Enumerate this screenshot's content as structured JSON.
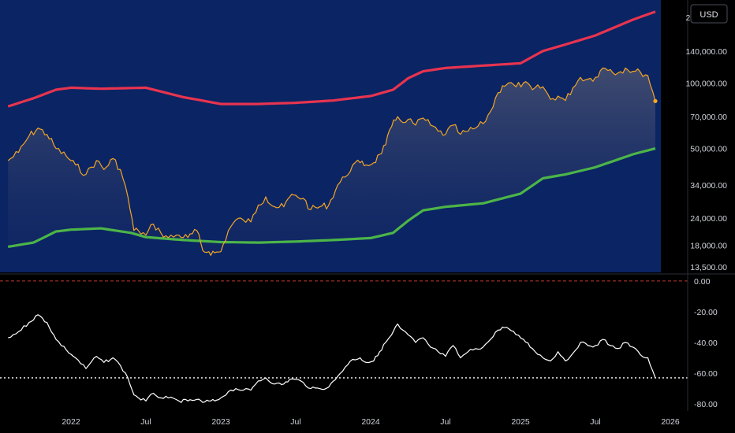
{
  "currency_label": "USD",
  "colors": {
    "panel_bg": "#0b2464",
    "price": "#f5a623",
    "upper_band": "#e8344f",
    "lower_band": "#4cb548",
    "oscillator": "#ffffff",
    "zero_line": "#c0392b"
  },
  "chart_data": [
    {
      "type": "line",
      "scale": "log",
      "ylim": [
        13500,
        240000
      ],
      "y_ticks": [
        "200,000.00",
        "140,000.00",
        "100,000.00",
        "70,000.00",
        "50,000.00",
        "34,000.00",
        "24,000.00",
        "18,000.00",
        "13,500.00"
      ],
      "y_tick_values": [
        200000,
        140000,
        100000,
        70000,
        50000,
        34000,
        24000,
        18000,
        13500
      ],
      "x_ticks": [
        "2022",
        "Jul",
        "2023",
        "Jul",
        "2024",
        "Jul",
        "2025",
        "Jul",
        "2026"
      ],
      "x_tick_values": [
        2022.0,
        2022.5,
        2023.0,
        2023.5,
        2024.0,
        2024.5,
        2025.0,
        2025.5,
        2026.0
      ],
      "series": [
        {
          "key": "upper",
          "x": [
            2021.58,
            2021.75,
            2021.9,
            2022.0,
            2022.2,
            2022.5,
            2022.75,
            2023.0,
            2023.25,
            2023.5,
            2023.75,
            2024.0,
            2024.15,
            2024.25,
            2024.35,
            2024.5,
            2024.75,
            2025.0,
            2025.15,
            2025.3,
            2025.5,
            2025.75,
            2025.9
          ],
          "y": [
            78000,
            85000,
            93000,
            95000,
            94000,
            95000,
            86000,
            80000,
            80000,
            81000,
            83000,
            87000,
            93000,
            105000,
            113000,
            117000,
            120000,
            123000,
            140000,
            150000,
            165000,
            195000,
            212000
          ]
        },
        {
          "key": "lower",
          "x": [
            2021.58,
            2021.75,
            2021.9,
            2022.0,
            2022.2,
            2022.4,
            2022.5,
            2022.75,
            2023.0,
            2023.25,
            2023.5,
            2023.75,
            2024.0,
            2024.15,
            2024.25,
            2024.35,
            2024.5,
            2024.75,
            2025.0,
            2025.15,
            2025.3,
            2025.5,
            2025.75,
            2025.9
          ],
          "y": [
            17700,
            18500,
            20800,
            21200,
            21500,
            20500,
            19600,
            19000,
            18600,
            18500,
            18700,
            19000,
            19400,
            20500,
            23300,
            26000,
            27000,
            28000,
            31000,
            36500,
            38000,
            41000,
            47000,
            50000
          ]
        },
        {
          "key": "price",
          "x": [
            2021.58,
            2021.65,
            2021.72,
            2021.78,
            2021.84,
            2021.9,
            2021.97,
            2022.03,
            2022.1,
            2022.17,
            2022.22,
            2022.28,
            2022.33,
            2022.38,
            2022.42,
            2022.45,
            2022.5,
            2022.55,
            2022.6,
            2022.65,
            2022.72,
            2022.78,
            2022.84,
            2022.88,
            2022.92,
            2022.96,
            2023.0,
            2023.05,
            2023.1,
            2023.15,
            2023.2,
            2023.25,
            2023.3,
            2023.36,
            2023.42,
            2023.46,
            2023.5,
            2023.55,
            2023.6,
            2023.66,
            2023.72,
            2023.78,
            2023.83,
            2023.88,
            2023.93,
            2023.97,
            2024.02,
            2024.06,
            2024.1,
            2024.14,
            2024.18,
            2024.2,
            2024.25,
            2024.3,
            2024.35,
            2024.4,
            2024.45,
            2024.5,
            2024.55,
            2024.6,
            2024.65,
            2024.7,
            2024.75,
            2024.8,
            2024.85,
            2024.88,
            2024.92,
            2024.97,
            2025.02,
            2025.08,
            2025.15,
            2025.2,
            2025.25,
            2025.3,
            2025.35,
            2025.4,
            2025.45,
            2025.5,
            2025.55,
            2025.6,
            2025.65,
            2025.7,
            2025.75,
            2025.8,
            2025.85,
            2025.9
          ],
          "y": [
            44000,
            48000,
            57000,
            62000,
            58000,
            50000,
            46000,
            42000,
            38000,
            44000,
            40000,
            45000,
            40000,
            30000,
            21000,
            21000,
            20000,
            22500,
            20500,
            19500,
            20000,
            19500,
            21000,
            17000,
            16800,
            16600,
            16800,
            21000,
            23500,
            23500,
            23000,
            27500,
            30000,
            27000,
            27000,
            30000,
            30500,
            29500,
            26200,
            27000,
            27500,
            34000,
            37000,
            42000,
            43000,
            42000,
            43000,
            47000,
            52000,
            63000,
            70000,
            67000,
            68000,
            64000,
            69000,
            64000,
            60000,
            58000,
            64000,
            58000,
            60000,
            62000,
            65000,
            74000,
            90000,
            97000,
            100000,
            96000,
            100000,
            93000,
            96000,
            84000,
            87000,
            83000,
            95000,
            106000,
            104000,
            106000,
            117000,
            115000,
            111000,
            117000,
            113000,
            112000,
            108000,
            82500
          ]
        }
      ]
    },
    {
      "type": "line",
      "ylim": [
        -84,
        4
      ],
      "y_ticks": [
        "0.00",
        "-20.00",
        "-40.00",
        "-60.00",
        "-80.00"
      ],
      "y_tick_values": [
        0,
        -20,
        -40,
        -60,
        -80
      ],
      "dashed_level": 0,
      "dotted_level": -63,
      "series": [
        {
          "key": "oscillator",
          "x": [
            2021.58,
            2021.65,
            2021.72,
            2021.78,
            2021.84,
            2021.9,
            2021.97,
            2022.03,
            2022.1,
            2022.17,
            2022.22,
            2022.28,
            2022.33,
            2022.38,
            2022.42,
            2022.45,
            2022.5,
            2022.55,
            2022.6,
            2022.65,
            2022.72,
            2022.78,
            2022.84,
            2022.88,
            2022.92,
            2022.96,
            2023.0,
            2023.05,
            2023.1,
            2023.15,
            2023.2,
            2023.25,
            2023.3,
            2023.36,
            2023.42,
            2023.46,
            2023.5,
            2023.55,
            2023.6,
            2023.66,
            2023.72,
            2023.78,
            2023.83,
            2023.88,
            2023.93,
            2023.97,
            2024.02,
            2024.06,
            2024.1,
            2024.14,
            2024.18,
            2024.2,
            2024.25,
            2024.3,
            2024.35,
            2024.4,
            2024.45,
            2024.5,
            2024.55,
            2024.6,
            2024.65,
            2024.7,
            2024.75,
            2024.8,
            2024.85,
            2024.88,
            2024.92,
            2024.97,
            2025.02,
            2025.08,
            2025.15,
            2025.2,
            2025.25,
            2025.3,
            2025.35,
            2025.4,
            2025.45,
            2025.5,
            2025.55,
            2025.6,
            2025.65,
            2025.7,
            2025.75,
            2025.8,
            2025.85,
            2025.9
          ],
          "y": [
            -37,
            -33,
            -27,
            -22,
            -27,
            -38,
            -45,
            -50,
            -57,
            -49,
            -53,
            -50,
            -55,
            -63,
            -74,
            -76,
            -78,
            -73,
            -76,
            -76,
            -78,
            -78,
            -77,
            -79,
            -78,
            -78,
            -76,
            -72,
            -70,
            -71,
            -71,
            -65,
            -63,
            -67,
            -67,
            -64,
            -64,
            -66,
            -70,
            -70,
            -69,
            -62,
            -56,
            -51,
            -50,
            -53,
            -52,
            -46,
            -40,
            -35,
            -28,
            -31,
            -35,
            -40,
            -37,
            -43,
            -46,
            -49,
            -42,
            -50,
            -46,
            -44,
            -43,
            -38,
            -32,
            -30,
            -31,
            -35,
            -38,
            -44,
            -50,
            -52,
            -46,
            -52,
            -47,
            -40,
            -42,
            -42,
            -38,
            -42,
            -44,
            -40,
            -43,
            -48,
            -50,
            -63
          ]
        }
      ]
    }
  ]
}
